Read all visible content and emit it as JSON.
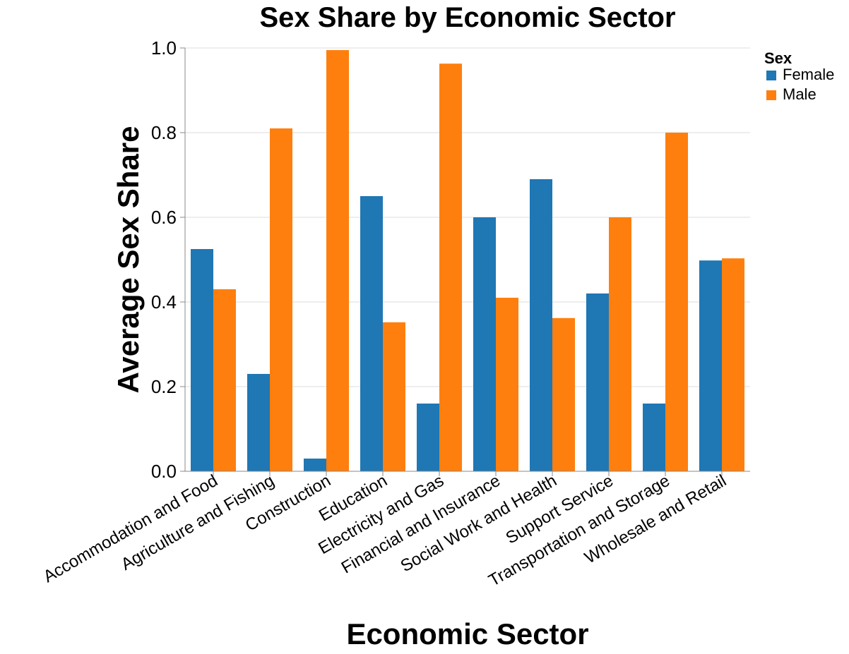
{
  "chart_data": {
    "type": "bar",
    "title": "Sex Share by Economic Sector",
    "xlabel": "Economic Sector",
    "ylabel": "Average Sex Share",
    "ylim": [
      0,
      1.0
    ],
    "yticks": [
      "0.0",
      "0.2",
      "0.4",
      "0.6",
      "0.8",
      "1.0"
    ],
    "grid": true,
    "legend": {
      "title": "Sex",
      "placement": "top-right"
    },
    "categories": [
      "Accommodation and Food",
      "Agriculture and Fishing",
      "Construction",
      "Education",
      "Electricity and Gas",
      "Financial and Insurance",
      "Social Work and Health",
      "Support Service",
      "Transportation and Storage",
      "Wholesale and Retail"
    ],
    "series": [
      {
        "name": "Female",
        "color": "#1f77b4",
        "values": [
          0.525,
          0.23,
          0.03,
          0.65,
          0.16,
          0.6,
          0.69,
          0.42,
          0.16,
          0.498
        ]
      },
      {
        "name": "Male",
        "color": "#ff7f0e",
        "values": [
          0.43,
          0.81,
          0.995,
          0.352,
          0.963,
          0.41,
          0.362,
          0.6,
          0.8,
          0.503
        ]
      }
    ]
  }
}
